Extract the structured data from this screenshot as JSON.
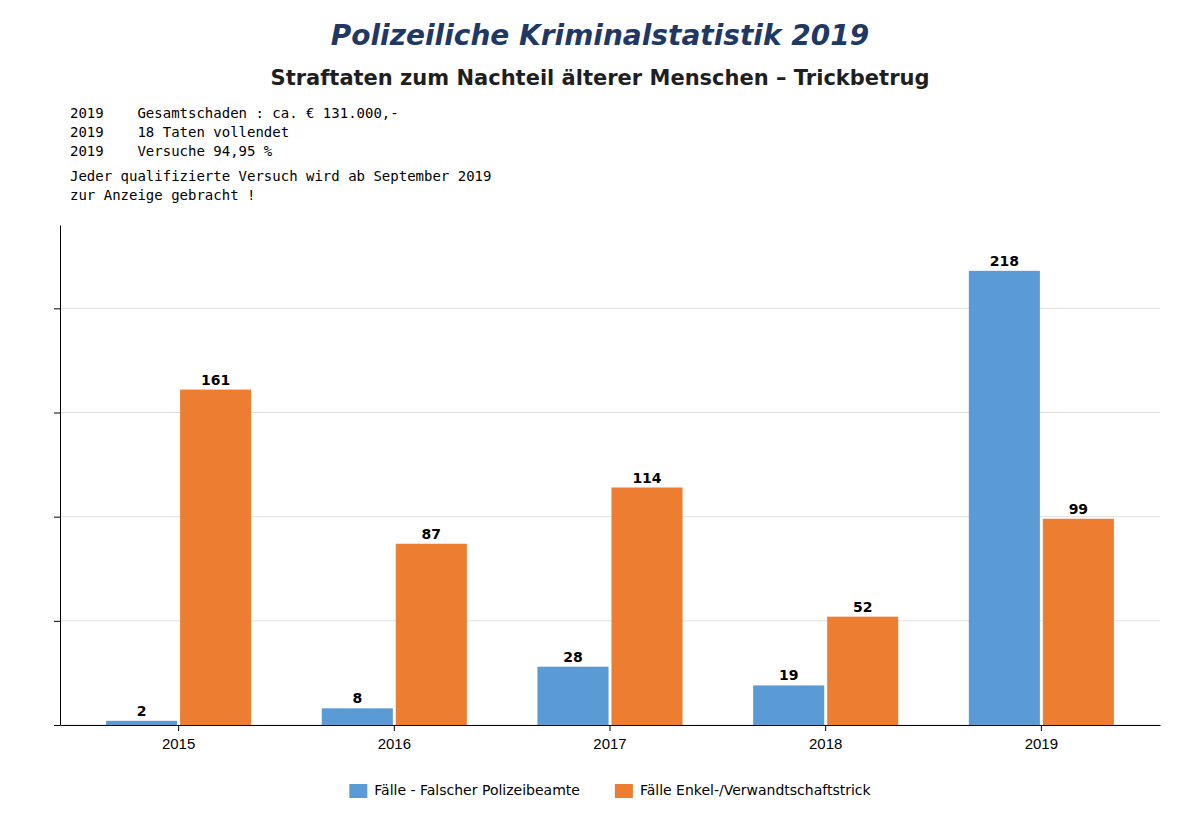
{
  "chart_data": {
    "type": "bar",
    "title": "Polizeiliche Kriminalstatistik 2019",
    "subtitle": "Straftaten zum Nachteil älterer Menschen – Trickbetrug",
    "annotations": [
      "2019    Gesamtschaden : ca. € 131.000,-",
      "2019    18 Taten vollendet",
      "2019    Versuche 94,95 %",
      "Jeder qualifizierte Versuch wird ab September 2019",
      "zur Anzeige gebracht !"
    ],
    "categories": [
      "2015",
      "2016",
      "2017",
      "2018",
      "2019"
    ],
    "series": [
      {
        "name": "Fälle - Falscher Polizeibeamte",
        "color": "#5B9BD5",
        "values": [
          2,
          8,
          28,
          19,
          218
        ]
      },
      {
        "name": "Fälle Enkel-/Verwandtschaftstrick",
        "color": "#ED7D31",
        "values": [
          161,
          87,
          114,
          52,
          99
        ]
      }
    ],
    "ylim": [
      0,
      240
    ],
    "yticks": [
      0,
      50,
      100,
      150,
      200
    ],
    "grid": true,
    "tick_labels": "x",
    "data_labels": true,
    "legend": "bottom"
  }
}
